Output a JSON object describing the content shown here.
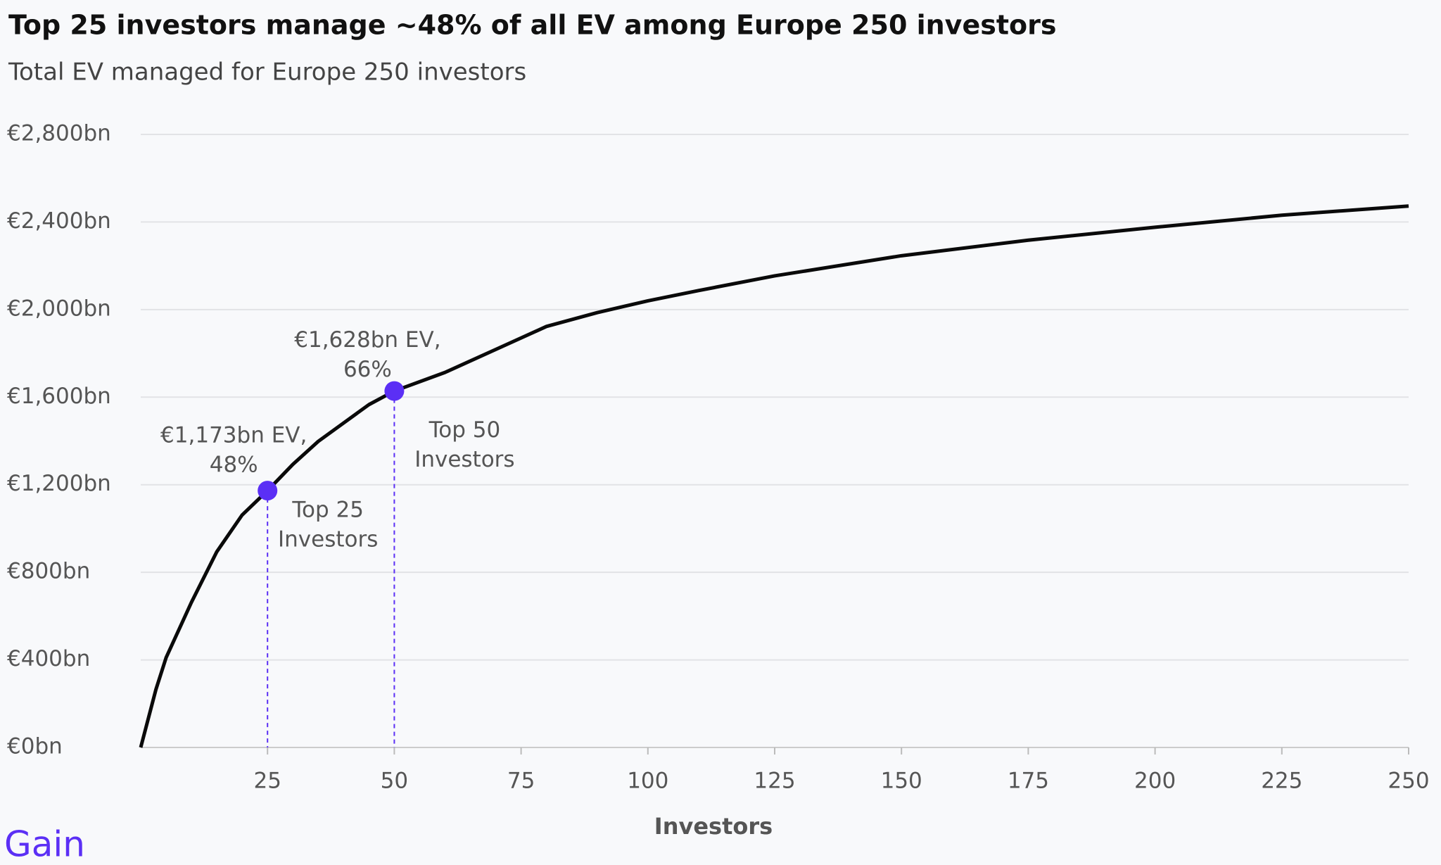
{
  "chart_data": {
    "type": "line",
    "title": "Top 25 investors manage ~48% of all EV among Europe 250 investors",
    "subtitle": "Total EV managed for Europe 250 investors",
    "x_label": "Investors",
    "x": [
      0,
      3,
      5,
      10,
      15,
      20,
      25,
      30,
      35,
      40,
      45,
      50,
      60,
      70,
      80,
      90,
      100,
      110,
      125,
      150,
      175,
      200,
      225,
      250
    ],
    "values": [
      0,
      265,
      410,
      663,
      894,
      1062,
      1173,
      1293,
      1398,
      1482,
      1566,
      1628,
      1713,
      1818,
      1923,
      1986,
      2040,
      2087,
      2154,
      2246,
      2317,
      2376,
      2431,
      2473
    ],
    "color": "#0a0a0a",
    "highlight_color": "#5b2ff5",
    "highlights": [
      {
        "x": 25,
        "value": 1173,
        "label": [
          "€1,173bn EV,",
          "48%"
        ],
        "note": [
          "Top 25",
          "Investors"
        ]
      },
      {
        "x": 50,
        "value": 1628,
        "label": [
          "€1,628bn EV,",
          "66%"
        ],
        "note": [
          "Top 50",
          "Investors"
        ]
      }
    ],
    "xlim": [
      0,
      250
    ],
    "xticks": [
      25,
      50,
      75,
      100,
      125,
      150,
      175,
      200,
      225,
      250
    ],
    "ylim": [
      0,
      2800
    ],
    "yticks": [
      {
        "value": 0,
        "label": "€0bn"
      },
      {
        "value": 400,
        "label": "€400bn"
      },
      {
        "value": 800,
        "label": "€800bn"
      },
      {
        "value": 1200,
        "label": "€1,200bn"
      },
      {
        "value": 1600,
        "label": "€1,600bn"
      },
      {
        "value": 2000,
        "label": "€2,000bn"
      },
      {
        "value": 2400,
        "label": "€2,400bn"
      },
      {
        "value": 2800,
        "label": "€2,800bn"
      }
    ],
    "grid": true
  },
  "logo": "Gain"
}
